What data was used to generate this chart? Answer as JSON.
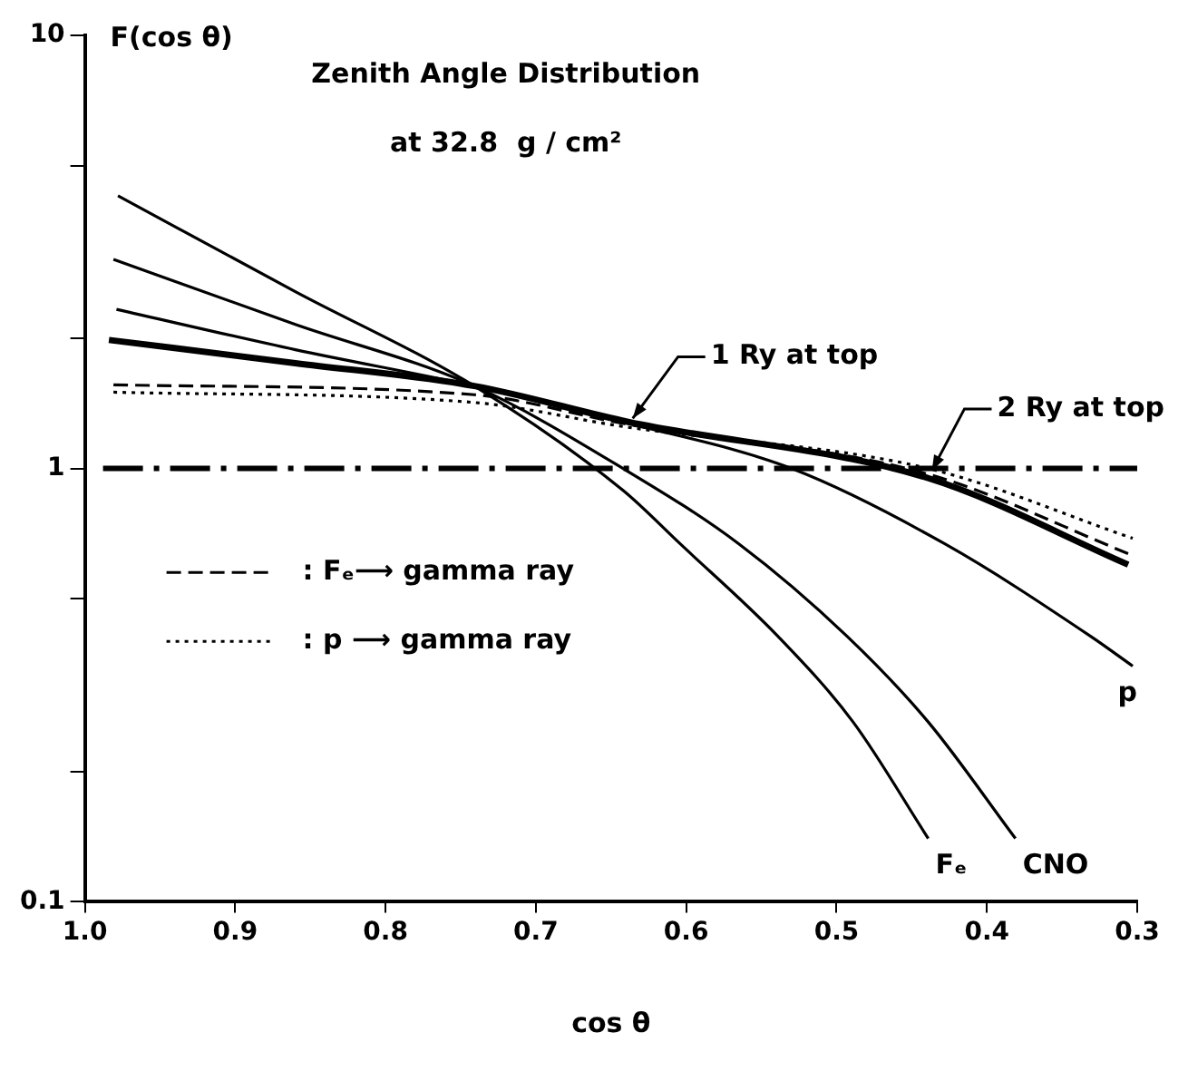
{
  "chart_data": {
    "type": "line",
    "title": "Zenith Angle Distribution",
    "subtitle": "at 32.8  g / cm²",
    "xlabel": "cos θ",
    "ylabel": "F(cos θ)",
    "log": "y",
    "grid": false,
    "legend": "left",
    "xlim": [
      1.0,
      0.3
    ],
    "xticks": [
      {
        "value": 1.0,
        "label": "1.0"
      },
      0.9,
      0.8,
      0.7,
      0.6,
      0.5,
      0.4,
      0.3
    ],
    "ylim": [
      0.1,
      10
    ],
    "yticks": [
      0.1,
      {
        "value": 0.2,
        "label": null
      },
      {
        "value": 0.5,
        "label": null
      },
      1,
      {
        "value": 2,
        "label": null
      },
      {
        "value": 5,
        "label": null
      },
      10
    ],
    "series": [
      {
        "name": "Fₑ",
        "color": "#000000",
        "line_style": "solid",
        "x": [
          0.978,
          0.86,
          0.741,
          0.642,
          0.604,
          0.539,
          0.489,
          0.439
        ],
        "values": [
          4.26,
          2.56,
          1.55,
          0.89,
          0.67,
          0.41,
          0.26,
          0.14
        ]
      },
      {
        "name": "CNO",
        "color": "#000000",
        "line_style": "solid",
        "x": [
          0.981,
          0.86,
          0.741,
          0.642,
          0.565,
          0.493,
          0.439,
          0.381
        ],
        "values": [
          3.04,
          2.15,
          1.55,
          1.0,
          0.67,
          0.41,
          0.26,
          0.14
        ]
      },
      {
        "name": "p",
        "color": "#000000",
        "line_style": "solid",
        "x": [
          0.979,
          0.86,
          0.741,
          0.642,
          0.53,
          0.428,
          0.331,
          0.303
        ],
        "values": [
          2.33,
          1.88,
          1.55,
          1.28,
          1.0,
          0.67,
          0.41,
          0.35
        ]
      },
      {
        "color": "#000000",
        "line_style": "solid",
        "x": [
          0.984,
          0.86,
          0.741,
          0.638,
          0.439,
          0.306
        ],
        "values": [
          1.98,
          1.75,
          1.55,
          1.28,
          0.95,
          0.6
        ]
      },
      {
        "name": ": Fₑ⟶ gamma ray",
        "color": "#000000",
        "line_style": "dashed",
        "x": [
          0.981,
          0.741,
          0.642,
          0.439,
          0.303
        ],
        "values": [
          1.56,
          1.48,
          1.27,
          0.97,
          0.63
        ]
      },
      {
        "name": ": p ⟶ gamma ray",
        "color": "#000000",
        "line_style": "dotted",
        "x": [
          0.981,
          0.741,
          0.642,
          0.439,
          0.303
        ],
        "values": [
          1.5,
          1.42,
          1.25,
          1.0,
          0.69
        ]
      }
    ],
    "ref_lines": [
      {
        "axis": "y",
        "value": 1,
        "line_style": "dashed",
        "color": "#000000"
      }
    ],
    "annotations": [
      {
        "text": "1 Ry at top",
        "x": 0.638,
        "y": 1.28
      },
      {
        "text": "2 Ry at top",
        "x": 0.439,
        "y": 0.97
      }
    ]
  }
}
